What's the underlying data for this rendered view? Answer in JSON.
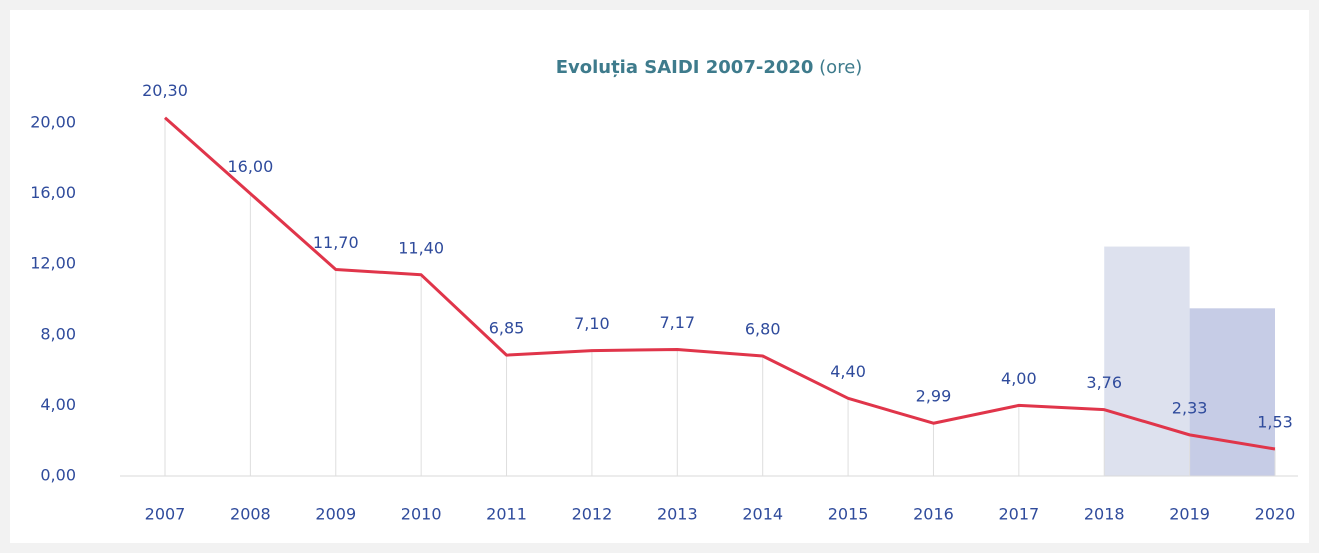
{
  "chart_data": {
    "type": "line",
    "title": "Evoluția SAIDI 2007-2020",
    "unit": "(ore)",
    "categories": [
      "2007",
      "2008",
      "2009",
      "2010",
      "2011",
      "2012",
      "2013",
      "2014",
      "2015",
      "2016",
      "2017",
      "2018",
      "2019",
      "2020"
    ],
    "values": [
      20.3,
      16.0,
      11.7,
      11.4,
      6.85,
      7.1,
      7.17,
      6.8,
      4.4,
      2.99,
      4.0,
      3.76,
      2.33,
      1.53
    ],
    "value_labels": [
      "20,30",
      "16,00",
      "11,70",
      "11,40",
      "6,85",
      "7,10",
      "7,17",
      "6,80",
      "4,40",
      "2,99",
      "4,00",
      "3,76",
      "2,33",
      "1,53"
    ],
    "color": "#e0354a",
    "ylim": [
      0,
      20
    ],
    "yticks": [
      {
        "value": 0,
        "label": "0,00"
      },
      {
        "value": 4,
        "label": "4,00"
      },
      {
        "value": 8,
        "label": "8,00"
      },
      {
        "value": 12,
        "label": "12,00"
      },
      {
        "value": 16,
        "label": "16,00"
      },
      {
        "value": 20,
        "label": "20,00"
      }
    ],
    "bands": [
      {
        "from": "2018",
        "to": "2019",
        "value": 13.0,
        "color": "#dde1ee"
      },
      {
        "from": "2019",
        "to": "2020",
        "value": 9.5,
        "color": "#c6cce6"
      }
    ]
  }
}
